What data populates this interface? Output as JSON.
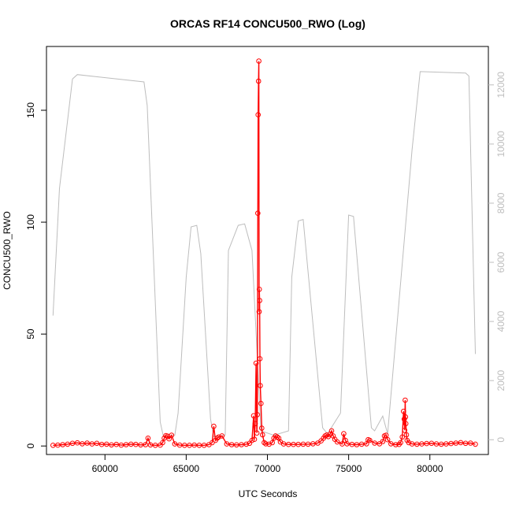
{
  "chart_data": {
    "type": "line",
    "title": "ORCAS RF14 CONCU500_RWO (Log)",
    "xlabel": "UTC Seconds",
    "ylabel": "CONCU500_RWO",
    "xlim": [
      56400,
      83600
    ],
    "ylim": [
      -3.8,
      178.5
    ],
    "y2lim": [
      -500,
      13300
    ],
    "xticks": [
      60000,
      65000,
      70000,
      75000,
      80000
    ],
    "yticks": [
      0,
      50,
      100,
      150
    ],
    "y2ticks": [
      0,
      2000,
      4000,
      6000,
      8000,
      10000,
      12000
    ],
    "grid": false,
    "series": [
      {
        "role": "concentration",
        "axis": "left",
        "color": "#ff0000",
        "marker": "circle",
        "x": [
          56800,
          57100,
          57400,
          57700,
          58000,
          58300,
          58600,
          58900,
          59200,
          59500,
          59800,
          60100,
          60400,
          60700,
          61000,
          61300,
          61600,
          61900,
          62200,
          62500,
          62650,
          62800,
          63100,
          63400,
          63550,
          63650,
          63750,
          63850,
          63950,
          64100,
          64300,
          64600,
          64900,
          65200,
          65500,
          65800,
          66100,
          66400,
          66600,
          66700,
          66800,
          66900,
          67000,
          67200,
          67500,
          67800,
          68100,
          68400,
          68700,
          68900,
          69050,
          69150,
          69200,
          69250,
          69300,
          69350,
          69380,
          69410,
          69430,
          69450,
          69470,
          69490,
          69500,
          69520,
          69540,
          69560,
          69600,
          69650,
          69700,
          69800,
          69900,
          70100,
          70300,
          70400,
          70500,
          70600,
          70700,
          70800,
          71000,
          71300,
          71600,
          71900,
          72200,
          72500,
          72800,
          73100,
          73300,
          73450,
          73550,
          73650,
          73750,
          73850,
          73950,
          74050,
          74150,
          74300,
          74600,
          74700,
          74800,
          74900,
          75200,
          75500,
          75800,
          76100,
          76200,
          76300,
          76600,
          76900,
          77100,
          77200,
          77300,
          77400,
          77600,
          77900,
          78100,
          78200,
          78300,
          78380,
          78420,
          78450,
          78480,
          78500,
          78520,
          78560,
          78600,
          78700,
          78900,
          79200,
          79500,
          79800,
          80100,
          80400,
          80700,
          81000,
          81300,
          81600,
          81900,
          82200,
          82500,
          82800
        ],
        "y": [
          0.3,
          0.4,
          0.6,
          0.8,
          1.2,
          1.4,
          1.0,
          1.3,
          0.9,
          1.2,
          0.7,
          0.8,
          0.5,
          0.7,
          0.4,
          0.6,
          0.8,
          0.7,
          0.5,
          0.6,
          3.5,
          0.5,
          0.3,
          0.4,
          1.5,
          3.5,
          4.6,
          4.4,
          3.2,
          4.8,
          0.9,
          0.4,
          0.3,
          0.3,
          0.4,
          0.3,
          0.3,
          0.6,
          1.5,
          8.8,
          2.5,
          3.5,
          4.0,
          4.5,
          0.9,
          0.6,
          0.5,
          0.6,
          0.8,
          1.2,
          2.5,
          13.5,
          3.0,
          10,
          37,
          5.8,
          14,
          104,
          148,
          163,
          172,
          60,
          70,
          65,
          39,
          27,
          19,
          8,
          5,
          1.5,
          1.0,
          0.8,
          1.5,
          3.5,
          4.5,
          4.0,
          3.5,
          1.8,
          0.9,
          0.7,
          0.7,
          0.7,
          0.8,
          0.8,
          1.0,
          1.3,
          2.3,
          3.5,
          4.5,
          4.9,
          4.2,
          5.2,
          6.8,
          4.5,
          3.0,
          1.8,
          0.9,
          5.5,
          2.5,
          1.0,
          0.7,
          0.6,
          0.8,
          1.0,
          2.8,
          2.5,
          1.3,
          1.0,
          2.0,
          4.5,
          4.8,
          2.8,
          1.0,
          0.6,
          0.7,
          1.5,
          4.0,
          15.5,
          12.0,
          7,
          20.5,
          13,
          10,
          5,
          2.5,
          1.5,
          0.9,
          0.8,
          0.9,
          1.1,
          1.2,
          0.9,
          0.8,
          0.9,
          1.1,
          1.3,
          1.5,
          1.2,
          1.3,
          0.8
        ]
      },
      {
        "role": "altitude",
        "axis": "right",
        "color": "#bdbdbd",
        "marker": "none",
        "x": [
          56800,
          57200,
          57700,
          58000,
          58300,
          62400,
          62600,
          63400,
          63600,
          64300,
          64500,
          65000,
          65300,
          65650,
          65900,
          66500,
          66700,
          67400,
          67600,
          68200,
          68600,
          69050,
          69600,
          70400,
          71300,
          71500,
          71900,
          72200,
          73400,
          73700,
          74500,
          75000,
          75300,
          76400,
          76600,
          77100,
          77400,
          78900,
          79400,
          82200,
          82400,
          82800
        ],
        "y": [
          4200,
          8500,
          10800,
          12200,
          12350,
          12100,
          11300,
          600,
          100,
          150,
          900,
          5500,
          7200,
          7250,
          6300,
          700,
          100,
          150,
          6400,
          7250,
          7300,
          6400,
          300,
          150,
          300,
          5500,
          7400,
          7450,
          400,
          200,
          900,
          7600,
          7550,
          400,
          300,
          800,
          200,
          9800,
          12450,
          12400,
          12300,
          2900
        ]
      }
    ]
  }
}
